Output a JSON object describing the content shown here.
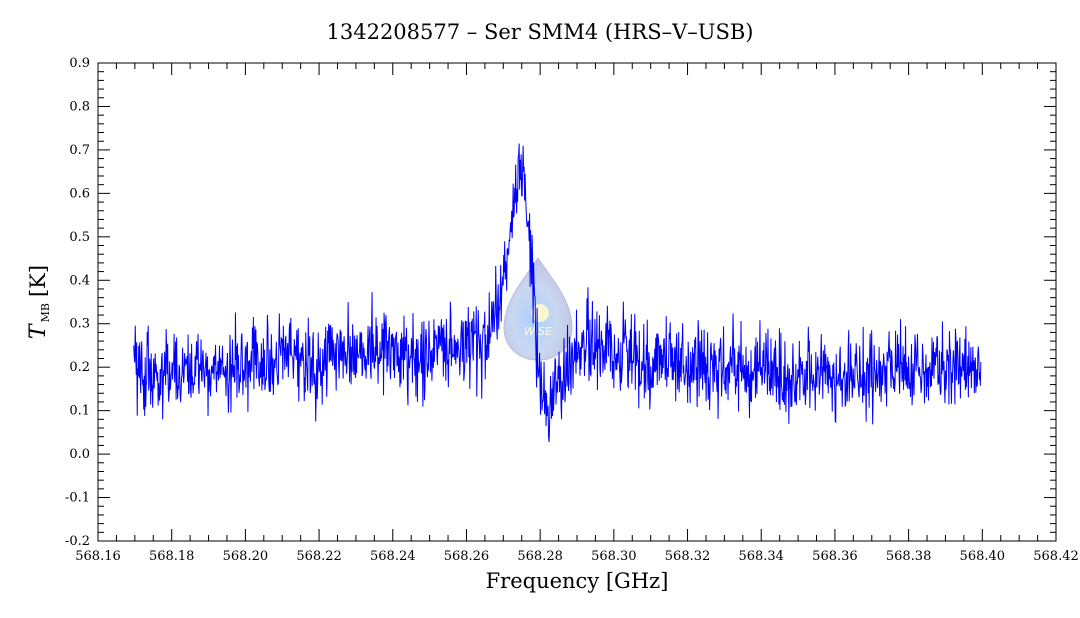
{
  "chart_data": {
    "type": "line",
    "title": "1342208577 – Ser SMM4 (HRS–V–USB)",
    "xlabel": "Frequency [GHz]",
    "ylabel": {
      "symbol": "T",
      "subscript": "MB",
      "unit": "[K]"
    },
    "xlim": [
      568.16,
      568.42
    ],
    "ylim": [
      -0.2,
      0.9
    ],
    "xticks": [
      "568.16",
      "568.18",
      "568.20",
      "568.22",
      "568.24",
      "568.26",
      "568.28",
      "568.30",
      "568.32",
      "568.34",
      "568.36",
      "568.38",
      "568.40",
      "568.42"
    ],
    "yticks": [
      "-0.2",
      "-0.1",
      "0.0",
      "0.1",
      "0.2",
      "0.3",
      "0.4",
      "0.5",
      "0.6",
      "0.7",
      "0.8",
      "0.9"
    ],
    "grid": false,
    "series_color": "#0000ff",
    "x_range": [
      568.1697,
      568.3996
    ],
    "noise_model": {
      "baseline": 0.22,
      "sigma": 0.085
    },
    "series": [
      {
        "x": [
          568.17,
          568.175,
          568.18,
          568.185,
          568.19,
          568.195,
          568.2,
          568.205,
          568.21,
          568.215,
          568.22,
          568.225,
          568.23,
          568.235,
          568.24,
          568.245,
          568.25,
          568.255,
          568.26,
          568.265,
          568.268,
          568.27,
          568.272,
          568.274,
          568.275,
          568.276,
          568.278,
          568.28,
          568.282,
          568.285,
          568.29,
          568.295,
          568.3,
          568.305,
          568.31,
          568.315,
          568.32,
          568.325,
          568.33,
          568.335,
          568.34,
          568.345,
          568.35,
          568.355,
          568.36,
          568.365,
          568.37,
          568.375,
          568.38,
          568.385,
          568.39,
          568.395,
          568.3996
        ],
        "values": [
          0.2,
          0.19,
          0.19,
          0.2,
          0.2,
          0.2,
          0.21,
          0.21,
          0.22,
          0.22,
          0.22,
          0.23,
          0.23,
          0.24,
          0.24,
          0.24,
          0.25,
          0.25,
          0.26,
          0.27,
          0.32,
          0.4,
          0.52,
          0.62,
          0.66,
          0.62,
          0.4,
          0.14,
          0.1,
          0.17,
          0.24,
          0.25,
          0.23,
          0.22,
          0.21,
          0.21,
          0.21,
          0.2,
          0.2,
          0.19,
          0.19,
          0.18,
          0.18,
          0.18,
          0.18,
          0.18,
          0.18,
          0.18,
          0.19,
          0.19,
          0.19,
          0.19,
          0.19
        ]
      }
    ]
  },
  "watermark": {
    "text": "WISE"
  }
}
